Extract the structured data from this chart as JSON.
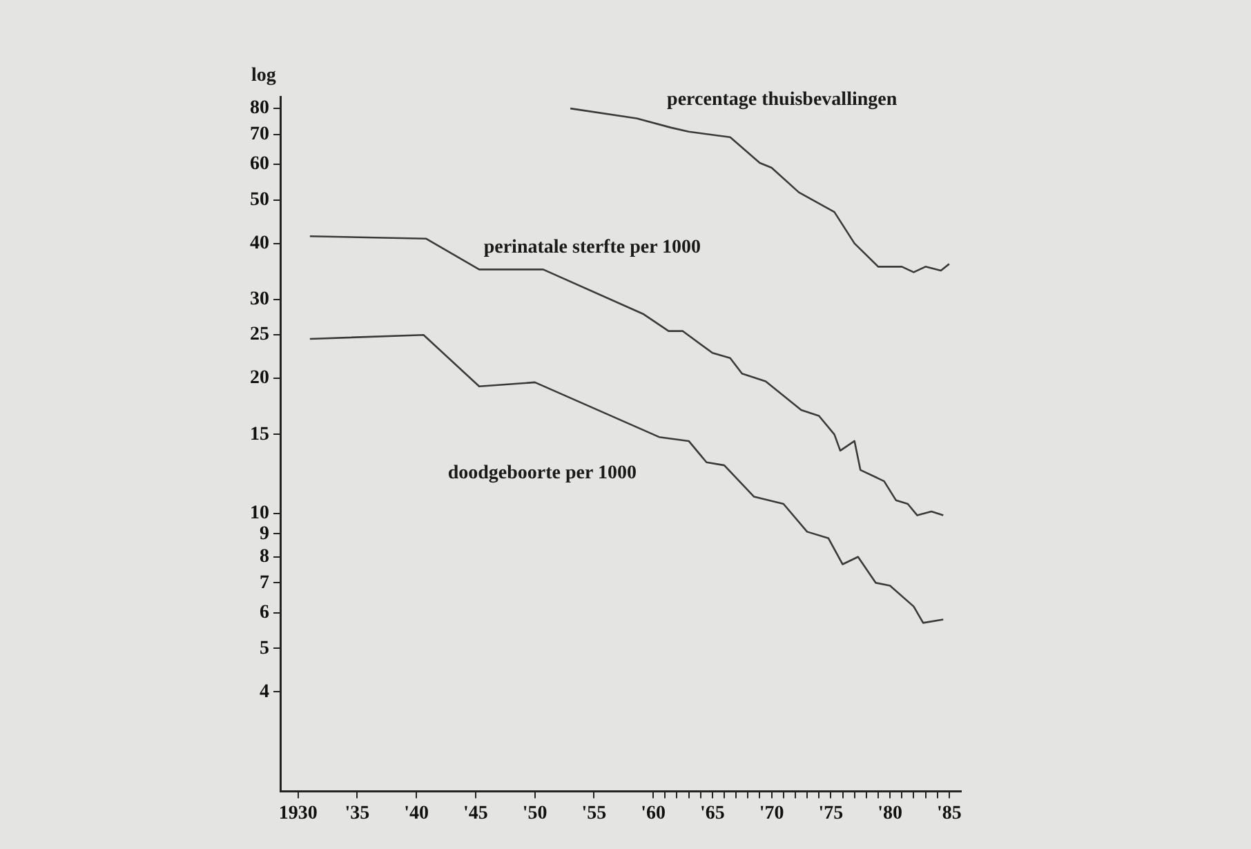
{
  "chart_data": {
    "type": "line",
    "ylabel": "log",
    "log": "y",
    "grid": false,
    "legend": false,
    "marker": "none",
    "line_style": "solid",
    "xlim": [
      1928.5,
      1986
    ],
    "ylim": [
      2.4,
      85
    ],
    "xticks": [
      1930,
      {
        "value": 1935,
        "label": "'35"
      },
      {
        "value": 1940,
        "label": "'40"
      },
      {
        "value": 1945,
        "label": "'45"
      },
      {
        "value": 1950,
        "label": "'50"
      },
      {
        "value": 1955,
        "label": "'55"
      },
      {
        "value": 1960,
        "label": "'60"
      },
      {
        "value": 1961,
        "label": null
      },
      {
        "value": 1962,
        "label": null
      },
      {
        "value": 1963,
        "label": null
      },
      {
        "value": 1964,
        "label": null
      },
      {
        "value": 1965,
        "label": "'65"
      },
      {
        "value": 1966,
        "label": null
      },
      {
        "value": 1967,
        "label": null
      },
      {
        "value": 1968,
        "label": null
      },
      {
        "value": 1969,
        "label": null
      },
      {
        "value": 1970,
        "label": "'70"
      },
      {
        "value": 1971,
        "label": null
      },
      {
        "value": 1972,
        "label": null
      },
      {
        "value": 1973,
        "label": null
      },
      {
        "value": 1974,
        "label": null
      },
      {
        "value": 1975,
        "label": "'75"
      },
      {
        "value": 1976,
        "label": null
      },
      {
        "value": 1977,
        "label": null
      },
      {
        "value": 1978,
        "label": null
      },
      {
        "value": 1979,
        "label": null
      },
      {
        "value": 1980,
        "label": "'80"
      },
      {
        "value": 1981,
        "label": null
      },
      {
        "value": 1982,
        "label": null
      },
      {
        "value": 1983,
        "label": null
      },
      {
        "value": 1984,
        "label": null
      },
      {
        "value": 1985,
        "label": "'85"
      }
    ],
    "yticks": [
      4,
      5,
      6,
      7,
      8,
      9,
      10,
      15,
      20,
      25,
      30,
      40,
      50,
      60,
      70,
      80
    ],
    "series": [
      {
        "name": "percentage thuisbevallingen",
        "color": "#3a3a3a",
        "x": [
          1953,
          1958.6,
          1961.5,
          1963,
          1966.5,
          1969,
          1970,
          1972.3,
          1975.3,
          1977,
          1979,
          1981,
          1982,
          1983,
          1984.3,
          1985
        ],
        "values": [
          80,
          76,
          72.5,
          71,
          69,
          60.5,
          59,
          52,
          47,
          40,
          35.5,
          35.5,
          34.5,
          35.5,
          34.8,
          36
        ]
      },
      {
        "name": "perinatale sterfte per 1000",
        "color": "#3a3a3a",
        "x": [
          1931,
          1940.8,
          1945.3,
          1950.7,
          1959.2,
          1961.3,
          1962.5,
          1965,
          1966.5,
          1967.5,
          1969.5,
          1972.5,
          1974,
          1975.3,
          1975.8,
          1977,
          1977.5,
          1979.5,
          1980.5,
          1981.5,
          1982.3,
          1983.5,
          1984.5
        ],
        "values": [
          41.5,
          41,
          35,
          35,
          27.8,
          25.5,
          25.5,
          22.8,
          22.2,
          20.5,
          19.7,
          17,
          16.5,
          15,
          13.8,
          14.5,
          12.5,
          11.8,
          10.7,
          10.5,
          9.9,
          10.1,
          9.9
        ]
      },
      {
        "name": "doodgeboorte per 1000",
        "color": "#3a3a3a",
        "x": [
          1931,
          1940.6,
          1945.3,
          1950,
          1960.5,
          1963,
          1964.5,
          1966,
          1968.5,
          1971,
          1973,
          1974.8,
          1976,
          1977.3,
          1978.8,
          1980,
          1982,
          1982.8,
          1984.5
        ],
        "values": [
          24.5,
          25,
          19.2,
          19.6,
          14.8,
          14.5,
          13,
          12.8,
          10.9,
          10.5,
          9.1,
          8.8,
          7.7,
          8,
          7,
          6.9,
          6.2,
          5.7,
          5.8
        ]
      }
    ]
  }
}
